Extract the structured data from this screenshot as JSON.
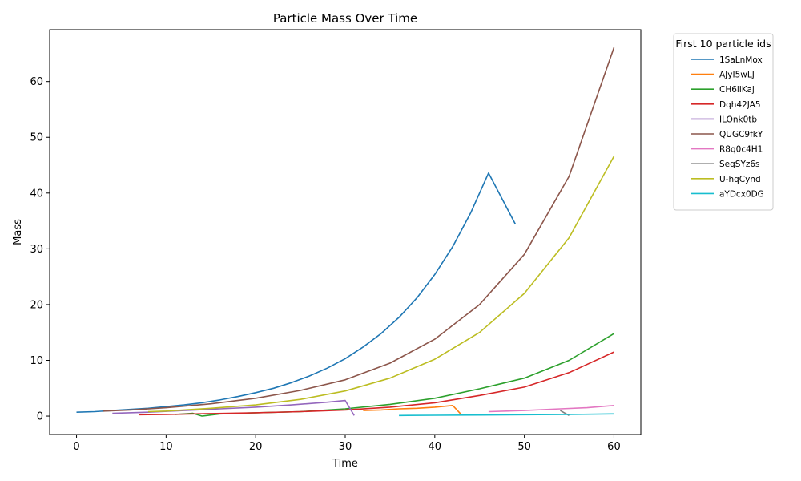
{
  "chart_data": {
    "type": "line",
    "title": "Particle Mass Over Time",
    "xlabel": "Time",
    "ylabel": "Mass",
    "xlim": [
      -3,
      63
    ],
    "ylim": [
      -3.3,
      69.3
    ],
    "xticks": [
      0,
      10,
      20,
      30,
      40,
      50,
      60
    ],
    "yticks": [
      0,
      10,
      20,
      30,
      40,
      50,
      60
    ],
    "grid": false,
    "legend": {
      "title": "First 10 particle ids",
      "placement": "outside-right-top"
    },
    "series": [
      {
        "name": "1SaLnMox",
        "color": "#1f77b4",
        "points": [
          [
            0,
            0.7
          ],
          [
            2,
            0.8
          ],
          [
            4,
            1.0
          ],
          [
            6,
            1.2
          ],
          [
            8,
            1.4
          ],
          [
            10,
            1.7
          ],
          [
            12,
            2.0
          ],
          [
            14,
            2.4
          ],
          [
            16,
            2.9
          ],
          [
            18,
            3.5
          ],
          [
            20,
            4.2
          ],
          [
            22,
            5.0
          ],
          [
            24,
            6.0
          ],
          [
            26,
            7.2
          ],
          [
            28,
            8.6
          ],
          [
            30,
            10.3
          ],
          [
            32,
            12.4
          ],
          [
            34,
            14.8
          ],
          [
            36,
            17.7
          ],
          [
            38,
            21.2
          ],
          [
            40,
            25.4
          ],
          [
            42,
            30.4
          ],
          [
            44,
            36.4
          ],
          [
            46,
            43.6
          ],
          [
            49,
            34.4
          ]
        ]
      },
      {
        "name": "AJyI5wLJ",
        "color": "#ff7f0e",
        "points": [
          [
            32,
            1.0
          ],
          [
            34,
            1.1
          ],
          [
            36,
            1.3
          ],
          [
            38,
            1.4
          ],
          [
            40,
            1.6
          ],
          [
            42,
            1.9
          ],
          [
            43,
            0.2
          ],
          [
            45,
            0.25
          ],
          [
            47,
            0.3
          ]
        ]
      },
      {
        "name": "CH6liKaj",
        "color": "#2ca02c",
        "points": [
          [
            11,
            0.3
          ],
          [
            12,
            0.4
          ],
          [
            13,
            0.5
          ],
          [
            14,
            0.0
          ],
          [
            16,
            0.4
          ],
          [
            20,
            0.6
          ],
          [
            25,
            0.8
          ],
          [
            30,
            1.3
          ],
          [
            35,
            2.1
          ],
          [
            40,
            3.2
          ],
          [
            45,
            4.9
          ],
          [
            50,
            6.8
          ],
          [
            55,
            10.0
          ],
          [
            60,
            14.8
          ]
        ]
      },
      {
        "name": "Dqh42JA5",
        "color": "#d62728",
        "points": [
          [
            7,
            0.25
          ],
          [
            10,
            0.3
          ],
          [
            15,
            0.45
          ],
          [
            20,
            0.6
          ],
          [
            25,
            0.8
          ],
          [
            30,
            1.1
          ],
          [
            35,
            1.6
          ],
          [
            40,
            2.4
          ],
          [
            45,
            3.7
          ],
          [
            50,
            5.2
          ],
          [
            55,
            7.8
          ],
          [
            60,
            11.5
          ]
        ]
      },
      {
        "name": "ILOnk0tb",
        "color": "#9467bd",
        "points": [
          [
            4,
            0.5
          ],
          [
            8,
            0.7
          ],
          [
            12,
            1.0
          ],
          [
            16,
            1.3
          ],
          [
            20,
            1.6
          ],
          [
            24,
            2.0
          ],
          [
            28,
            2.5
          ],
          [
            30,
            2.8
          ],
          [
            31,
            0.1
          ]
        ]
      },
      {
        "name": "QUGC9fkY",
        "color": "#8c564b",
        "points": [
          [
            3,
            0.9
          ],
          [
            6,
            1.1
          ],
          [
            10,
            1.5
          ],
          [
            15,
            2.2
          ],
          [
            20,
            3.2
          ],
          [
            25,
            4.6
          ],
          [
            30,
            6.5
          ],
          [
            35,
            9.5
          ],
          [
            40,
            13.8
          ],
          [
            45,
            20.0
          ],
          [
            50,
            29.0
          ],
          [
            55,
            43.0
          ],
          [
            60,
            66.1
          ]
        ]
      },
      {
        "name": "R8q0c4H1",
        "color": "#e377c2",
        "points": [
          [
            46,
            0.8
          ],
          [
            50,
            1.0
          ],
          [
            54,
            1.3
          ],
          [
            57,
            1.5
          ],
          [
            60,
            1.9
          ]
        ]
      },
      {
        "name": "SeqSYz6s",
        "color": "#7f7f7f",
        "points": [
          [
            54,
            1.0
          ],
          [
            55,
            0.1
          ]
        ]
      },
      {
        "name": "U-hqCynd",
        "color": "#bcbd22",
        "points": [
          [
            8,
            0.8
          ],
          [
            10,
            0.9
          ],
          [
            15,
            1.4
          ],
          [
            20,
            2.0
          ],
          [
            25,
            3.0
          ],
          [
            30,
            4.5
          ],
          [
            35,
            6.8
          ],
          [
            40,
            10.2
          ],
          [
            45,
            15.0
          ],
          [
            50,
            22.0
          ],
          [
            55,
            32.0
          ],
          [
            60,
            46.6
          ]
        ]
      },
      {
        "name": "aYDcx0DG",
        "color": "#17becf",
        "points": [
          [
            36,
            0.1
          ],
          [
            40,
            0.15
          ],
          [
            45,
            0.2
          ],
          [
            50,
            0.25
          ],
          [
            55,
            0.3
          ],
          [
            60,
            0.4
          ]
        ]
      }
    ]
  }
}
